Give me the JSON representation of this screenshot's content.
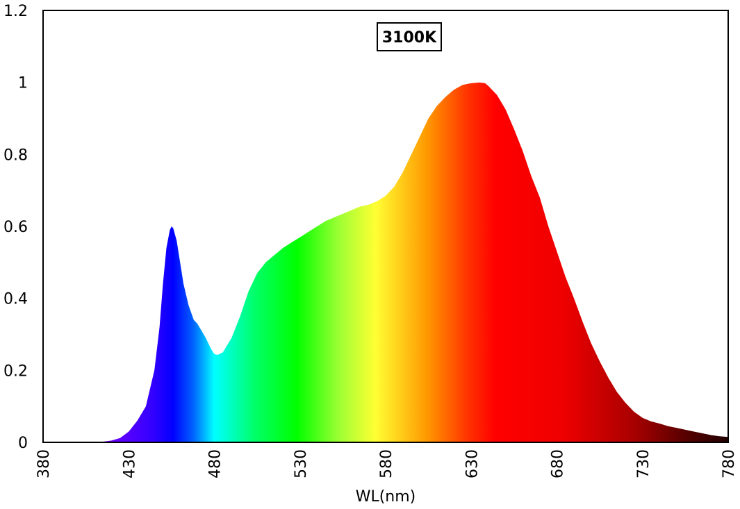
{
  "chart_data": {
    "type": "area",
    "title": "",
    "annotation": "3100K",
    "xlabel": "WL(nm)",
    "ylabel": "",
    "xlim": [
      380,
      780
    ],
    "ylim": [
      0,
      1.2
    ],
    "xticks": [
      "380",
      "430",
      "480",
      "530",
      "580",
      "630",
      "680",
      "730",
      "780"
    ],
    "yticks": [
      "0",
      "0.2",
      "0.4",
      "0.6",
      "0.8",
      "1",
      "1.2"
    ],
    "grid": false,
    "legend": "none",
    "fill": "visible-spectrum gradient",
    "series": [
      {
        "x": [
          380,
          400,
          410,
          415,
          420,
          425,
          430,
          435,
          440,
          445,
          448,
          450,
          452,
          454,
          455,
          456,
          458,
          460,
          462,
          465,
          468,
          470,
          475,
          478,
          480,
          482,
          485,
          490,
          495,
          500,
          505,
          510,
          515,
          520,
          525,
          530,
          535,
          540,
          545,
          550,
          555,
          560,
          565,
          570,
          575,
          580,
          585,
          590,
          595,
          600,
          605,
          610,
          615,
          620,
          625,
          630,
          635,
          638,
          640,
          645,
          650,
          655,
          660,
          665,
          670,
          675,
          680,
          685,
          690,
          695,
          700,
          705,
          710,
          715,
          720,
          725,
          730,
          735,
          740,
          745,
          750,
          755,
          760,
          765,
          770,
          775,
          780
        ],
        "y": [
          0.0,
          0.0,
          0.001,
          0.002,
          0.005,
          0.012,
          0.03,
          0.06,
          0.1,
          0.2,
          0.32,
          0.44,
          0.54,
          0.59,
          0.6,
          0.595,
          0.56,
          0.5,
          0.44,
          0.38,
          0.34,
          0.33,
          0.29,
          0.26,
          0.245,
          0.243,
          0.25,
          0.29,
          0.35,
          0.42,
          0.47,
          0.5,
          0.52,
          0.54,
          0.555,
          0.57,
          0.585,
          0.6,
          0.615,
          0.625,
          0.635,
          0.645,
          0.655,
          0.66,
          0.67,
          0.685,
          0.71,
          0.75,
          0.8,
          0.85,
          0.9,
          0.935,
          0.96,
          0.98,
          0.993,
          0.998,
          1.0,
          0.998,
          0.99,
          0.965,
          0.925,
          0.87,
          0.81,
          0.74,
          0.68,
          0.6,
          0.53,
          0.46,
          0.4,
          0.335,
          0.275,
          0.225,
          0.18,
          0.14,
          0.11,
          0.085,
          0.068,
          0.058,
          0.052,
          0.045,
          0.04,
          0.035,
          0.03,
          0.025,
          0.02,
          0.017,
          0.015
        ]
      }
    ]
  }
}
